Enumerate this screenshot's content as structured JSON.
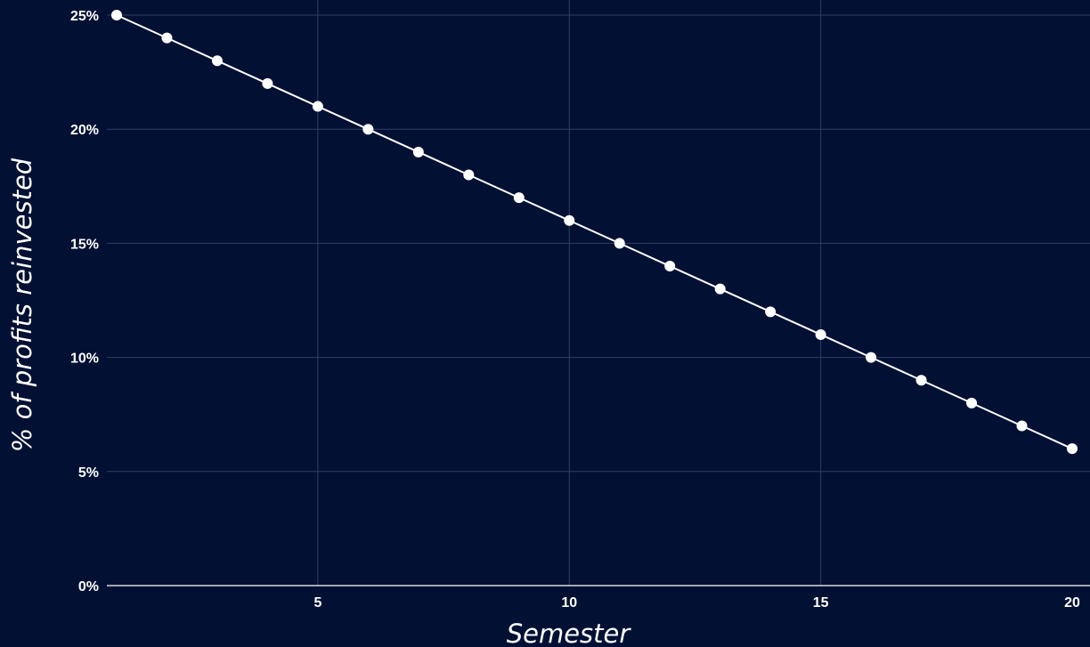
{
  "chart_data": {
    "type": "line",
    "title": "",
    "xlabel": "Semester",
    "ylabel": "% of profits reinvested",
    "x": [
      1,
      2,
      3,
      4,
      5,
      6,
      7,
      8,
      9,
      10,
      11,
      12,
      13,
      14,
      15,
      16,
      17,
      18,
      19,
      20
    ],
    "series": [
      {
        "values": [
          25,
          24,
          23,
          22,
          21,
          20,
          19,
          18,
          17,
          16,
          15,
          14,
          13,
          12,
          11,
          10,
          9,
          8,
          7,
          6
        ]
      }
    ],
    "xlim": [
      1,
      20
    ],
    "ylim": [
      0,
      25
    ],
    "xticks": [
      5,
      10,
      15,
      20
    ],
    "xtick_labels": [
      "5",
      "10",
      "15",
      "20"
    ],
    "yticks": [
      0,
      5,
      10,
      15,
      20,
      25
    ],
    "ytick_labels": [
      "0%",
      "5%",
      "10%",
      "15%",
      "20%",
      "25%"
    ],
    "grid": true,
    "legend": "none",
    "colors": {
      "background": "#021033",
      "grid": "#2f3f66",
      "line": "#ffffff",
      "marker": "#ffffff",
      "text": "#ffffff"
    }
  }
}
